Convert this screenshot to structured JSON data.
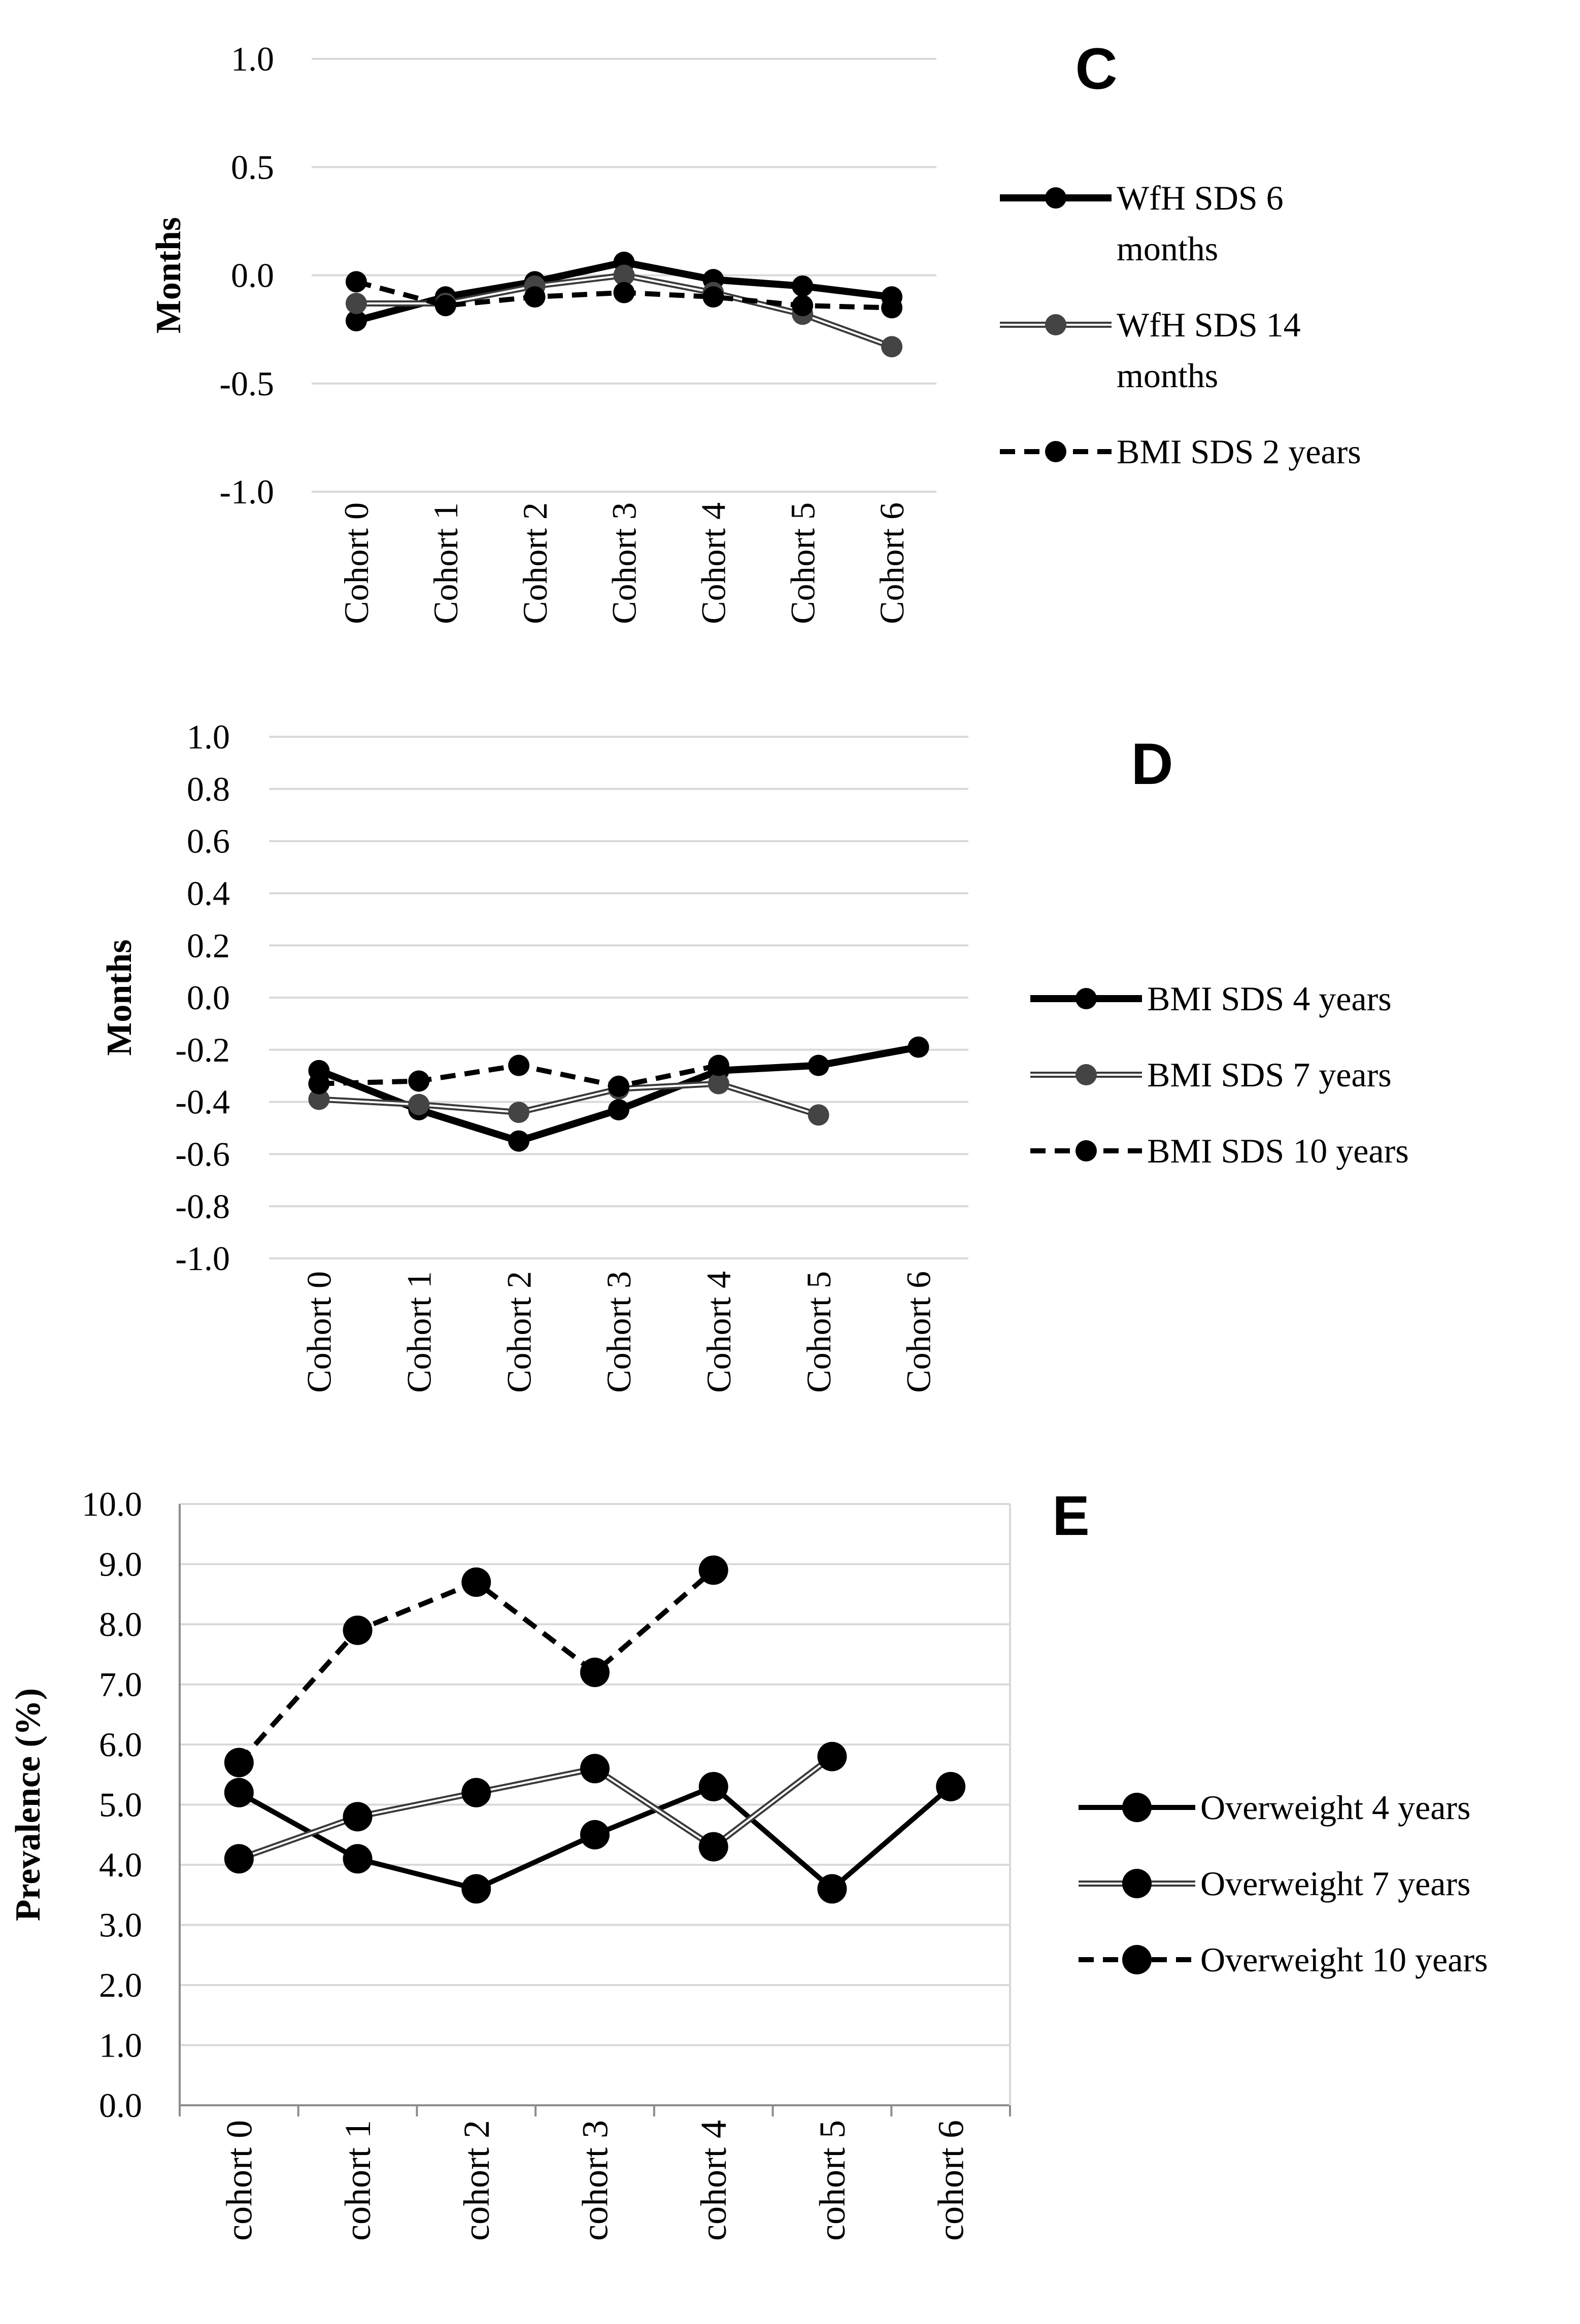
{
  "chart_data": [
    {
      "type": "line",
      "panel_label": "C",
      "ylabel": "Months",
      "xlabel": "",
      "ylim": [
        -1.0,
        1.0
      ],
      "yticks": [
        "1.0",
        "0.5",
        "0.0",
        "-0.5",
        "-1.0"
      ],
      "grid": true,
      "legend_position": "right",
      "categories": [
        "Cohort 0",
        "Cohort 1",
        "Cohort 2",
        "Cohort 3",
        "Cohort 4",
        "Cohort 5",
        "Cohort 6"
      ],
      "series": [
        {
          "name": "WfH SDS 6 months",
          "legend_lines": [
            "WfH SDS 6",
            "months"
          ],
          "style": "solid-thick",
          "color": "#000000",
          "values": [
            -0.21,
            -0.1,
            -0.03,
            0.06,
            -0.02,
            -0.05,
            -0.1
          ]
        },
        {
          "name": "WfH SDS 14 months",
          "legend_lines": [
            "WfH SDS 14",
            "months"
          ],
          "style": "double",
          "color": "#444444",
          "values": [
            -0.13,
            -0.13,
            -0.05,
            0.0,
            -0.08,
            -0.18,
            -0.33
          ]
        },
        {
          "name": "BMI SDS 2 years",
          "legend_lines": [
            "BMI SDS 2 years"
          ],
          "style": "dashed",
          "color": "#000000",
          "values": [
            -0.03,
            -0.14,
            -0.1,
            -0.08,
            -0.1,
            -0.14,
            -0.15
          ]
        }
      ]
    },
    {
      "type": "line",
      "panel_label": "D",
      "ylabel": "Months",
      "xlabel": "",
      "ylim": [
        -1.0,
        1.0
      ],
      "yticks": [
        "1.0",
        "0.8",
        "0.6",
        "0.4",
        "0.2",
        "0.0",
        "-0.2",
        "-0.4",
        "-0.6",
        "-0.8",
        "-1.0"
      ],
      "grid": true,
      "legend_position": "right",
      "categories": [
        "Cohort 0",
        "Cohort 1",
        "Cohort 2",
        "Cohort 3",
        "Cohort 4",
        "Cohort 5",
        "Cohort 6"
      ],
      "series": [
        {
          "name": "BMI SDS 4 years",
          "legend_lines": [
            "BMI SDS 4 years"
          ],
          "style": "solid-thick",
          "color": "#000000",
          "values": [
            -0.28,
            -0.43,
            -0.55,
            -0.43,
            -0.28,
            -0.26,
            -0.19
          ]
        },
        {
          "name": "BMI SDS 7 years",
          "legend_lines": [
            "BMI SDS 7 years"
          ],
          "style": "double",
          "color": "#444444",
          "values": [
            -0.39,
            -0.41,
            -0.44,
            -0.35,
            -0.33,
            -0.45,
            null
          ]
        },
        {
          "name": "BMI SDS 10 years",
          "legend_lines": [
            "BMI SDS 10 years"
          ],
          "style": "dashed",
          "color": "#000000",
          "values": [
            -0.33,
            -0.32,
            -0.26,
            -0.34,
            -0.26,
            null,
            null
          ]
        }
      ]
    },
    {
      "type": "line",
      "panel_label": "E",
      "ylabel": "Prevalence (%)",
      "xlabel": "",
      "ylim": [
        0.0,
        10.0
      ],
      "yticks": [
        "10.0",
        "9.0",
        "8.0",
        "7.0",
        "6.0",
        "5.0",
        "4.0",
        "3.0",
        "2.0",
        "1.0",
        "0.0"
      ],
      "grid": true,
      "legend_position": "right",
      "categories": [
        "cohort 0",
        "cohort 1",
        "cohort 2",
        "cohort 3",
        "cohort 4",
        "cohort 5",
        "cohort 6"
      ],
      "series": [
        {
          "name": "Overweight 4 years",
          "legend_lines": [
            "Overweight 4 years"
          ],
          "style": "solid",
          "color": "#000000",
          "values": [
            5.2,
            4.1,
            3.6,
            4.5,
            5.3,
            3.6,
            5.3
          ]
        },
        {
          "name": "Overweight 7 years",
          "legend_lines": [
            "Overweight 7 years"
          ],
          "style": "double",
          "color": "#000000",
          "values": [
            4.1,
            4.8,
            5.2,
            5.6,
            4.3,
            5.8,
            null
          ]
        },
        {
          "name": "Overweight 10 years",
          "legend_lines": [
            "Overweight 10 years"
          ],
          "style": "dashed",
          "color": "#000000",
          "values": [
            5.7,
            7.9,
            8.7,
            7.2,
            8.9,
            null,
            null
          ]
        }
      ]
    }
  ]
}
